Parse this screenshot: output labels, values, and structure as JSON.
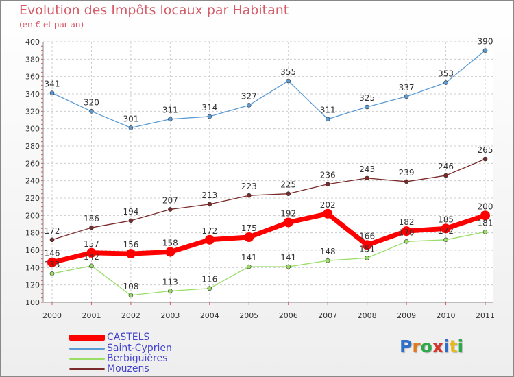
{
  "header": {
    "title": "Evolution des Impôts locaux par Habitant",
    "subtitle": "(en € et par an)"
  },
  "logo": {
    "letters": [
      "P",
      "r",
      "o",
      "x",
      "i",
      "t",
      "i"
    ],
    "colors": [
      "#2f6fc9",
      "#e07a1f",
      "#2fa84a",
      "#d6342c",
      "#2f6fc9",
      "#e8b820",
      "#2fa84a"
    ]
  },
  "chart_data": {
    "type": "line",
    "x": [
      "2000",
      "2001",
      "2002",
      "2003",
      "2004",
      "2005",
      "2006",
      "2007",
      "2008",
      "2009",
      "2010",
      "2011"
    ],
    "ylim": [
      100,
      400
    ],
    "yticks": [
      100,
      120,
      140,
      160,
      180,
      200,
      220,
      240,
      260,
      280,
      300,
      320,
      340,
      360,
      380,
      400
    ],
    "grid": true,
    "legend_position": "bottom-left",
    "series": [
      {
        "name": "CASTELS",
        "color": "#ff0000",
        "values": [
          146,
          157,
          156,
          158,
          172,
          175,
          192,
          202,
          166,
          182,
          185,
          200
        ]
      },
      {
        "name": "Saint-Cyprien",
        "color": "#5b9bd5",
        "values": [
          341,
          320,
          301,
          311,
          314,
          327,
          355,
          311,
          325,
          337,
          353,
          390
        ]
      },
      {
        "name": "Berbiguières",
        "color": "#99dd66",
        "values": [
          133,
          142,
          108,
          113,
          116,
          141,
          141,
          148,
          151,
          170,
          172,
          181
        ]
      },
      {
        "name": "Mouzens",
        "color": "#7a2a2a",
        "values": [
          172,
          186,
          194,
          207,
          213,
          223,
          225,
          236,
          243,
          239,
          246,
          265
        ]
      }
    ]
  }
}
